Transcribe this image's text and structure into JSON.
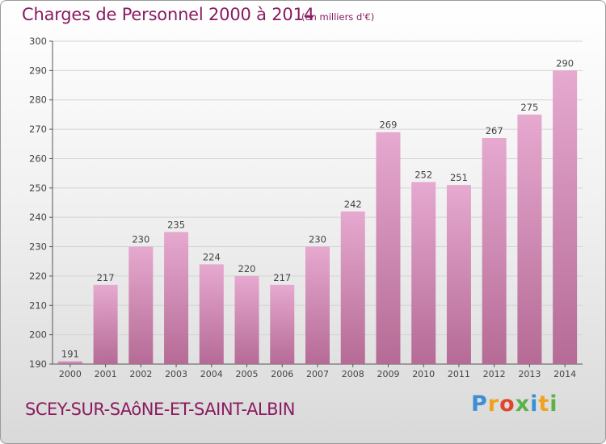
{
  "header": {
    "title": "Charges de Personnel 2000 à 2014",
    "subtitle": "(en milliers d'€)"
  },
  "footer": {
    "commune": "SCEY-SUR-SAôNE-ET-SAINT-ALBIN",
    "logo_letters": [
      "P",
      "r",
      "o",
      "x",
      "i",
      "t",
      "i"
    ],
    "logo_colors": [
      "#3c8fd6",
      "#f0a21e",
      "#e0462c",
      "#59b347",
      "#3c8fd6",
      "#f0a21e",
      "#59b347"
    ]
  },
  "colors": {
    "bar_light": "#e6a9cf",
    "bar_dark": "#b56b95",
    "text": "#8a1c60",
    "grid": "#d4d4d4"
  },
  "chart_data": {
    "type": "bar",
    "categories": [
      "2000",
      "2001",
      "2002",
      "2003",
      "2004",
      "2005",
      "2006",
      "2007",
      "2008",
      "2009",
      "2010",
      "2011",
      "2012",
      "2013",
      "2014"
    ],
    "values": [
      191,
      217,
      230,
      235,
      224,
      220,
      217,
      230,
      242,
      269,
      252,
      251,
      267,
      275,
      290
    ],
    "ylim": [
      190,
      300
    ],
    "yticks": [
      190,
      200,
      210,
      220,
      230,
      240,
      250,
      260,
      270,
      280,
      290,
      300
    ],
    "grid": true,
    "legend": "none"
  }
}
